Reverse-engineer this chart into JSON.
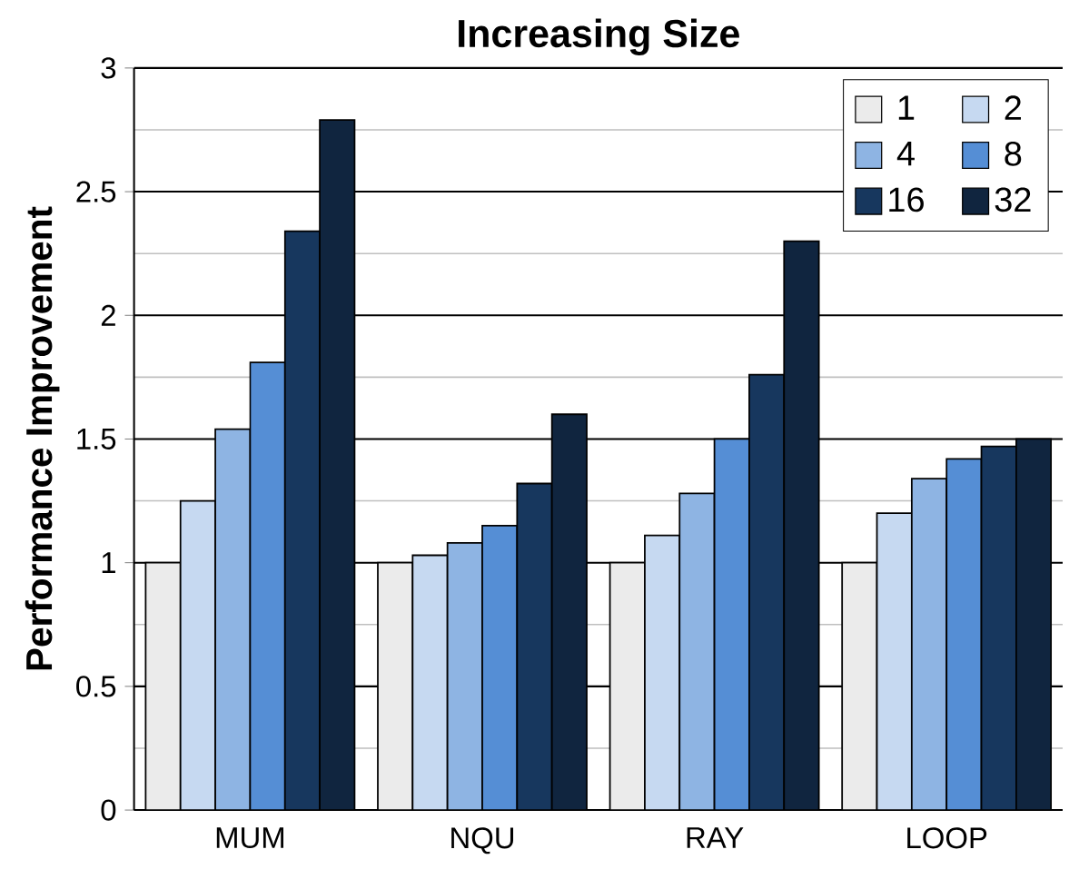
{
  "chart_data": {
    "type": "bar",
    "title": "Increasing Size",
    "ylabel": "Performance Improvement",
    "categories": [
      "MUM",
      "NQU",
      "RAY",
      "LOOP"
    ],
    "series": [
      {
        "name": "1",
        "color": "#ebebeb",
        "values": [
          1,
          1,
          1,
          1
        ]
      },
      {
        "name": "2",
        "color": "#c6d9f1",
        "values": [
          1.25,
          1.03,
          1.11,
          1.2
        ]
      },
      {
        "name": "4",
        "color": "#8eb4e3",
        "values": [
          1.54,
          1.08,
          1.28,
          1.34
        ]
      },
      {
        "name": "8",
        "color": "#558ed5",
        "values": [
          1.81,
          1.15,
          1.5,
          1.42
        ]
      },
      {
        "name": "16",
        "color": "#17375e",
        "values": [
          2.34,
          1.32,
          1.76,
          1.47
        ]
      },
      {
        "name": "32",
        "color": "#10253f",
        "values": [
          2.79,
          1.6,
          2.3,
          1.5
        ]
      }
    ],
    "ylim": [
      0,
      3
    ],
    "yticks": [
      0,
      0.5,
      1,
      1.5,
      2,
      2.5,
      3
    ],
    "grid": "y",
    "legend": "top right"
  }
}
